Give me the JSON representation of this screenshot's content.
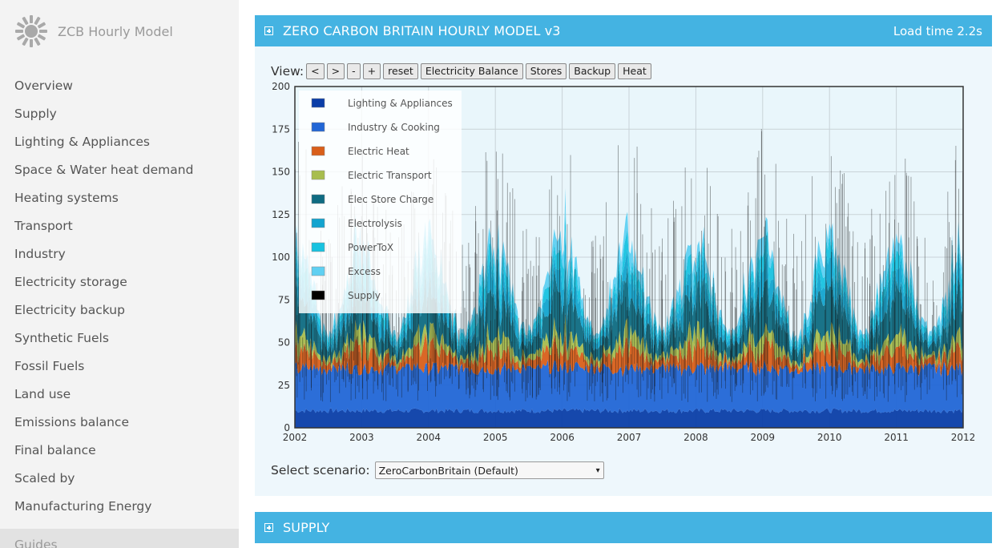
{
  "sidebar": {
    "brand": "ZCB Hourly Model",
    "items": [
      {
        "label": "Overview"
      },
      {
        "label": "Supply"
      },
      {
        "label": "Lighting & Appliances"
      },
      {
        "label": "Space & Water heat demand"
      },
      {
        "label": "Heating systems"
      },
      {
        "label": "Transport"
      },
      {
        "label": "Industry"
      },
      {
        "label": "Electricity storage"
      },
      {
        "label": "Electricity backup"
      },
      {
        "label": "Synthetic Fuels"
      },
      {
        "label": "Fossil Fuels"
      },
      {
        "label": "Land use"
      },
      {
        "label": "Emissions balance"
      },
      {
        "label": "Final balance"
      },
      {
        "label": "Scaled by"
      },
      {
        "label": "Manufacturing Energy"
      }
    ],
    "guides_label": "Guides"
  },
  "main_panel": {
    "title": "ZERO CARBON BRITAIN HOURLY MODEL v3",
    "load_time": "Load time 2.2s"
  },
  "view_controls": {
    "label": "View:",
    "buttons": [
      "<",
      ">",
      "-",
      "+",
      "reset",
      "Electricity Balance",
      "Stores",
      "Backup",
      "Heat"
    ]
  },
  "scenario": {
    "label": "Select scenario:",
    "selected": "ZeroCarbonBritain (Default)"
  },
  "supply_panel": {
    "title": "SUPPLY"
  },
  "colors": {
    "header": "#44b3e2",
    "chart_bg": "#e9f6fb"
  },
  "chart_data": {
    "type": "area",
    "x_ticks": [
      "2002",
      "2003",
      "2004",
      "2005",
      "2006",
      "2007",
      "2008",
      "2009",
      "2010",
      "2011",
      "2012"
    ],
    "y_ticks": [
      0,
      25,
      50,
      75,
      100,
      125,
      150,
      175,
      200
    ],
    "ylim": [
      0,
      200
    ],
    "grid": true,
    "legend_position": "top-left",
    "series": [
      {
        "name": "Lighting & Appliances",
        "color": "#0b3ea8",
        "approx_level": 10
      },
      {
        "name": "Industry & Cooking",
        "color": "#2266d6",
        "approx_level": 35
      },
      {
        "name": "Electric Heat",
        "color": "#d95f1a",
        "approx_level": 45
      },
      {
        "name": "Electric Transport",
        "color": "#a8bd4e",
        "approx_level": 52
      },
      {
        "name": "Elec Store Charge",
        "color": "#0f6b82",
        "approx_level": 70
      },
      {
        "name": "Electrolysis",
        "color": "#13a4cf",
        "approx_level": 80
      },
      {
        "name": "PowerToX",
        "color": "#18c2e0",
        "approx_level": 88
      },
      {
        "name": "Excess",
        "color": "#5fd0f2",
        "approx_level": 95
      },
      {
        "name": "Supply",
        "color": "#000000",
        "approx_level": 100
      }
    ]
  }
}
